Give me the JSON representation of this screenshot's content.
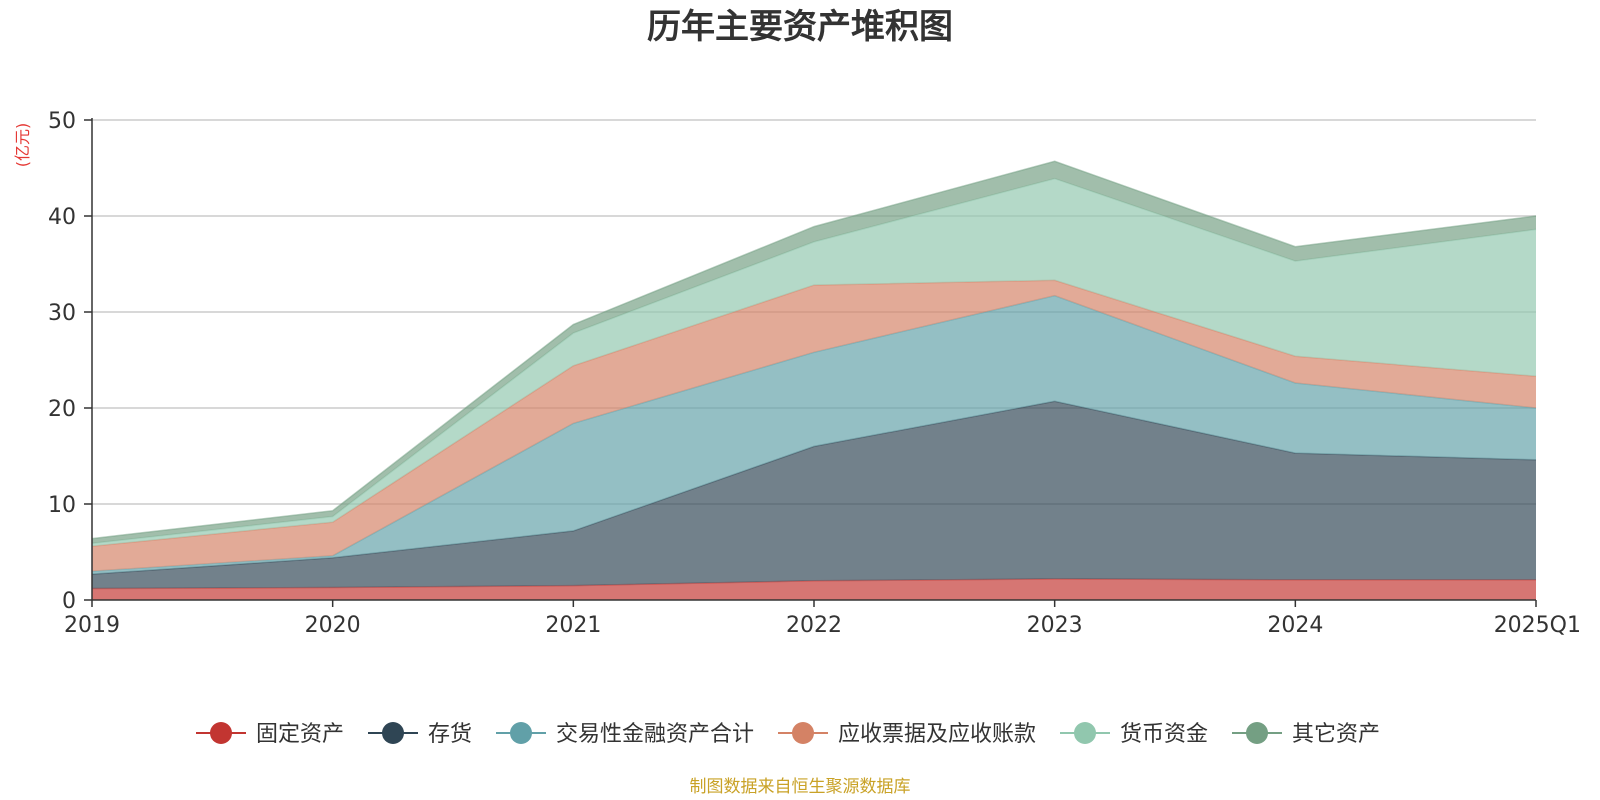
{
  "chart_data": {
    "type": "area",
    "stacked": true,
    "title": "历年主要资产堆积图",
    "unit_label": "(亿元)",
    "categories": [
      "2019",
      "2020",
      "2021",
      "2022",
      "2023",
      "2024",
      "2025Q1"
    ],
    "ylim": [
      0,
      50
    ],
    "y_ticks": [
      0,
      10,
      20,
      30,
      40,
      50
    ],
    "grid": true,
    "legend_position": "bottom",
    "series": [
      {
        "name": "固定资产",
        "color": "#c23531",
        "values": [
          1.2,
          1.3,
          1.5,
          2.0,
          2.2,
          2.1,
          2.1
        ]
      },
      {
        "name": "存货",
        "color": "#2f4554",
        "values": [
          1.5,
          3.1,
          5.7,
          14.0,
          18.5,
          13.2,
          12.5
        ]
      },
      {
        "name": "交易性金融资产合计",
        "color": "#61a0a8",
        "values": [
          0.3,
          0.2,
          11.2,
          9.8,
          11.0,
          7.3,
          5.4
        ]
      },
      {
        "name": "应收票据及应收账款",
        "color": "#d48265",
        "values": [
          2.6,
          3.5,
          6.0,
          7.0,
          1.6,
          2.8,
          3.3
        ]
      },
      {
        "name": "货币资金",
        "color": "#91c7ae",
        "values": [
          0.3,
          0.6,
          3.4,
          4.5,
          10.6,
          9.9,
          15.3
        ]
      },
      {
        "name": "其它资产",
        "color": "#749f83",
        "values": [
          0.5,
          0.6,
          0.9,
          1.6,
          1.8,
          1.5,
          1.4
        ]
      }
    ]
  },
  "source_note": "制图数据来自恒生聚源数据库"
}
